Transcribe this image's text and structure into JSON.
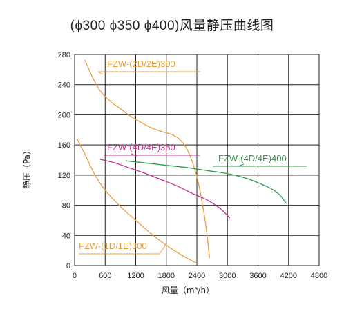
{
  "chart_data": {
    "type": "line",
    "title": "(ϕ300 ϕ350 ϕ400)风量静压曲线图",
    "xlabel": "风量（m³/h）",
    "ylabel": "静压（Pa）",
    "xlim": [
      0,
      4800
    ],
    "ylim": [
      0,
      280
    ],
    "x_ticks": [
      0,
      600,
      1200,
      1800,
      2400,
      3000,
      3600,
      4200,
      4800
    ],
    "y_ticks": [
      0,
      40,
      80,
      120,
      160,
      200,
      240,
      280
    ],
    "grid": true,
    "colors": {
      "orange": "#e8a040",
      "magenta": "#c8309a",
      "green": "#2e9a4a"
    },
    "series": [
      {
        "name": "FZW-(2D/2E)300",
        "color": "#e8a040",
        "points": [
          [
            200,
            273
          ],
          [
            350,
            250
          ],
          [
            500,
            232
          ],
          [
            700,
            218
          ],
          [
            900,
            208
          ],
          [
            1100,
            198
          ],
          [
            1300,
            190
          ],
          [
            1500,
            183
          ],
          [
            1700,
            178
          ],
          [
            1900,
            174
          ],
          [
            2050,
            168
          ],
          [
            2200,
            155
          ],
          [
            2350,
            130
          ],
          [
            2450,
            103
          ],
          [
            2550,
            65
          ],
          [
            2600,
            40
          ],
          [
            2650,
            10
          ]
        ]
      },
      {
        "name": "FZW-(4D/4E)350",
        "color": "#c8309a",
        "points": [
          [
            500,
            141
          ],
          [
            800,
            136
          ],
          [
            1100,
            129
          ],
          [
            1400,
            122
          ],
          [
            1700,
            114
          ],
          [
            2000,
            106
          ],
          [
            2300,
            96
          ],
          [
            2600,
            87
          ],
          [
            2850,
            76
          ],
          [
            3050,
            63
          ]
        ]
      },
      {
        "name": "FZW-(4D/4E)400",
        "color": "#2e9a4a",
        "points": [
          [
            1000,
            139
          ],
          [
            1400,
            136
          ],
          [
            1800,
            133
          ],
          [
            2200,
            130
          ],
          [
            2600,
            126
          ],
          [
            3000,
            122
          ],
          [
            3400,
            115
          ],
          [
            3800,
            104
          ],
          [
            3950,
            98
          ],
          [
            4050,
            92
          ],
          [
            4150,
            83
          ]
        ]
      },
      {
        "name": "FZW-(1D/1E)300",
        "color": "#e8a040",
        "points": [
          [
            50,
            168
          ],
          [
            200,
            148
          ],
          [
            400,
            120
          ],
          [
            600,
            100
          ],
          [
            800,
            85
          ],
          [
            1000,
            72
          ],
          [
            1200,
            60
          ],
          [
            1400,
            48
          ],
          [
            1600,
            37
          ],
          [
            1800,
            27
          ],
          [
            2000,
            18
          ],
          [
            2200,
            10
          ],
          [
            2400,
            3
          ]
        ]
      }
    ]
  }
}
